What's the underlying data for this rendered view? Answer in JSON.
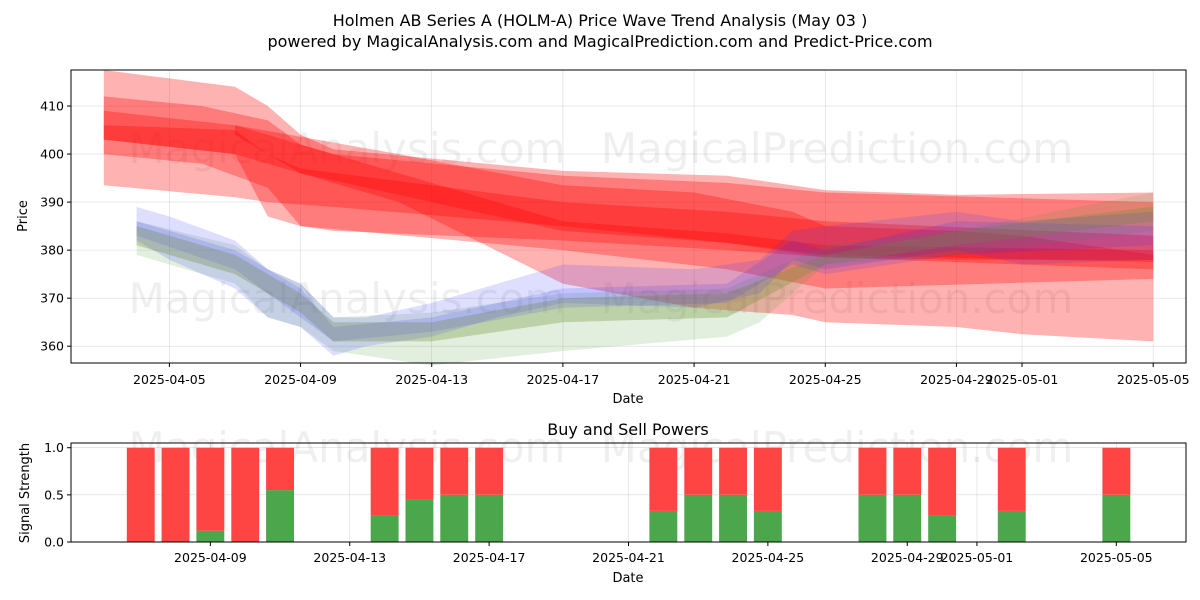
{
  "title_line1": "Holmen AB Series A (HOLM-A) Price Wave Trend Analysis (May 03 )",
  "title_line2": "powered by MagicalAnalysis.com and MagicalPrediction.com and Predict-Price.com",
  "watermarks": [
    "MagicalAnalysis.com",
    "MagicalPrediction.com"
  ],
  "colors": {
    "red": "#ff0000",
    "blue": "#3333ff",
    "green": "#4a9e3a",
    "olive": "#8a8a30",
    "buy": "#4ca64c",
    "sell": "#ff4444"
  },
  "chart_data": [
    {
      "type": "area",
      "xlabel": "Date",
      "ylabel": "Price",
      "xlim": [
        "2025-04-02",
        "2025-05-06"
      ],
      "ylim": [
        356.5,
        417.5
      ],
      "yticks": [
        360,
        370,
        380,
        390,
        400,
        410
      ],
      "xticks": [
        "2025-04-05",
        "2025-04-09",
        "2025-04-13",
        "2025-04-17",
        "2025-04-21",
        "2025-04-25",
        "2025-04-29",
        "2025-05-01",
        "2025-05-05"
      ],
      "grid": true,
      "red_bands": [
        {
          "x": [
            "2025-04-03",
            "2025-04-07",
            "2025-04-08",
            "2025-04-09",
            "2025-04-10",
            "2025-04-17",
            "2025-04-22",
            "2025-04-25",
            "2025-04-29",
            "2025-05-05"
          ],
          "upper": [
            417.5,
            414,
            410,
            404,
            401,
            396.5,
            395.5,
            392.5,
            391.5,
            392
          ],
          "lower": [
            393.5,
            391,
            390,
            389.5,
            389,
            385,
            381.5,
            378.5,
            378,
            378
          ]
        },
        {
          "x": [
            "2025-04-03",
            "2025-04-06",
            "2025-04-08",
            "2025-04-09",
            "2025-04-10",
            "2025-04-17",
            "2025-04-22",
            "2025-04-25",
            "2025-05-05"
          ],
          "upper": [
            412,
            410,
            407,
            402,
            400,
            395.5,
            394,
            392,
            390
          ],
          "lower": [
            400,
            398,
            393,
            385,
            384,
            382,
            380,
            378.5,
            376
          ]
        },
        {
          "x": [
            "2025-04-03",
            "2025-04-07",
            "2025-04-08",
            "2025-04-09",
            "2025-04-17",
            "2025-04-22",
            "2025-04-25",
            "2025-05-05"
          ],
          "upper": [
            406,
            405,
            400,
            397,
            390,
            388,
            386,
            383
          ],
          "lower": [
            403,
            400,
            387,
            385,
            380,
            376,
            372,
            374
          ]
        },
        {
          "x": [
            "2025-04-03",
            "2025-04-07",
            "2025-04-12",
            "2025-04-17",
            "2025-04-21",
            "2025-04-24",
            "2025-04-25",
            "2025-04-29",
            "2025-05-01",
            "2025-05-05"
          ],
          "upper": [
            409,
            406,
            400,
            393.5,
            392,
            388,
            385,
            384,
            383,
            379
          ],
          "lower": [
            403,
            400,
            390,
            373,
            368,
            366.5,
            365,
            364,
            362.5,
            361
          ]
        },
        {
          "x": [
            "2025-04-07",
            "2025-04-09",
            "2025-04-17",
            "2025-04-22",
            "2025-04-25",
            "2025-05-05"
          ],
          "upper": [
            406,
            402,
            386,
            383.5,
            381,
            380
          ],
          "lower": [
            404,
            396,
            384,
            381.5,
            379,
            377.5
          ]
        }
      ],
      "blue_bands": [
        {
          "x": [
            "2025-04-04",
            "2025-04-05",
            "2025-04-07",
            "2025-04-08",
            "2025-04-09",
            "2025-04-10",
            "2025-04-11",
            "2025-04-13",
            "2025-04-15",
            "2025-04-17",
            "2025-04-21",
            "2025-04-23",
            "2025-04-24",
            "2025-04-25",
            "2025-04-29",
            "2025-05-01",
            "2025-05-05"
          ],
          "upper": [
            389,
            387,
            382,
            376,
            373,
            366,
            366,
            369,
            373,
            377,
            376,
            378,
            384,
            385,
            388,
            386,
            388
          ],
          "lower": [
            382,
            378,
            372,
            366,
            364,
            358,
            360,
            362,
            366,
            369,
            368,
            371,
            378,
            376,
            380,
            377,
            378
          ]
        },
        {
          "x": [
            "2025-04-04",
            "2025-04-07",
            "2025-04-09",
            "2025-04-10",
            "2025-04-13",
            "2025-04-17",
            "2025-04-22",
            "2025-04-24",
            "2025-04-25",
            "2025-04-29",
            "2025-05-05"
          ],
          "upper": [
            386,
            380,
            372,
            364,
            366,
            372,
            373,
            382,
            380,
            386,
            385
          ],
          "lower": [
            383,
            376,
            366,
            361,
            363,
            368,
            369,
            377,
            375,
            379,
            381
          ]
        }
      ],
      "green_bands": [
        {
          "x": [
            "2025-04-04",
            "2025-04-07",
            "2025-04-08",
            "2025-04-09",
            "2025-04-10",
            "2025-04-13",
            "2025-04-17",
            "2025-04-22",
            "2025-04-23",
            "2025-04-25",
            "2025-04-29",
            "2025-05-05"
          ],
          "upper": [
            386,
            381,
            376,
            373,
            366,
            367,
            371,
            372,
            375,
            381,
            384,
            392
          ],
          "lower": [
            379,
            373,
            366,
            364,
            359,
            356,
            359,
            362,
            365,
            377,
            379,
            384
          ]
        },
        {
          "x": [
            "2025-04-04",
            "2025-04-07",
            "2025-04-09",
            "2025-04-10",
            "2025-04-13",
            "2025-04-17",
            "2025-04-22",
            "2025-04-25",
            "2025-04-29",
            "2025-05-05"
          ],
          "upper": [
            385,
            379,
            371,
            365,
            365,
            370,
            371,
            379,
            384,
            389
          ],
          "lower": [
            381,
            375,
            367,
            361,
            361,
            365,
            366,
            377,
            381,
            386
          ]
        }
      ]
    },
    {
      "type": "bar",
      "title": "Buy and Sell Powers",
      "xlabel": "Date",
      "ylabel": "Signal Strength",
      "xlim": [
        "2025-04-05",
        "2025-05-07"
      ],
      "ylim": [
        0,
        1.05
      ],
      "yticks": [
        "0.0",
        "0.5",
        "1.0"
      ],
      "xticks": [
        "2025-04-09",
        "2025-04-13",
        "2025-04-17",
        "2025-04-21",
        "2025-04-25",
        "2025-04-29",
        "2025-05-01",
        "2025-05-05"
      ],
      "grid": true,
      "dates": [
        "2025-04-07",
        "2025-04-08",
        "2025-04-09",
        "2025-04-10",
        "2025-04-11",
        "2025-04-14",
        "2025-04-15",
        "2025-04-16",
        "2025-04-17",
        "2025-04-22",
        "2025-04-23",
        "2025-04-24",
        "2025-04-25",
        "2025-04-28",
        "2025-04-29",
        "2025-04-30",
        "2025-05-02",
        "2025-05-05"
      ],
      "buy": [
        0,
        0,
        0.12,
        0,
        0.55,
        0.28,
        0.45,
        0.5,
        0.5,
        0.33,
        0.5,
        0.5,
        0.33,
        0.5,
        0.5,
        0.28,
        0.33,
        0.5
      ],
      "sell": [
        1,
        1,
        0.88,
        1,
        0.45,
        0.72,
        0.55,
        0.5,
        0.5,
        0.67,
        0.5,
        0.5,
        0.67,
        0.5,
        0.5,
        0.72,
        0.67,
        0.5
      ]
    }
  ]
}
